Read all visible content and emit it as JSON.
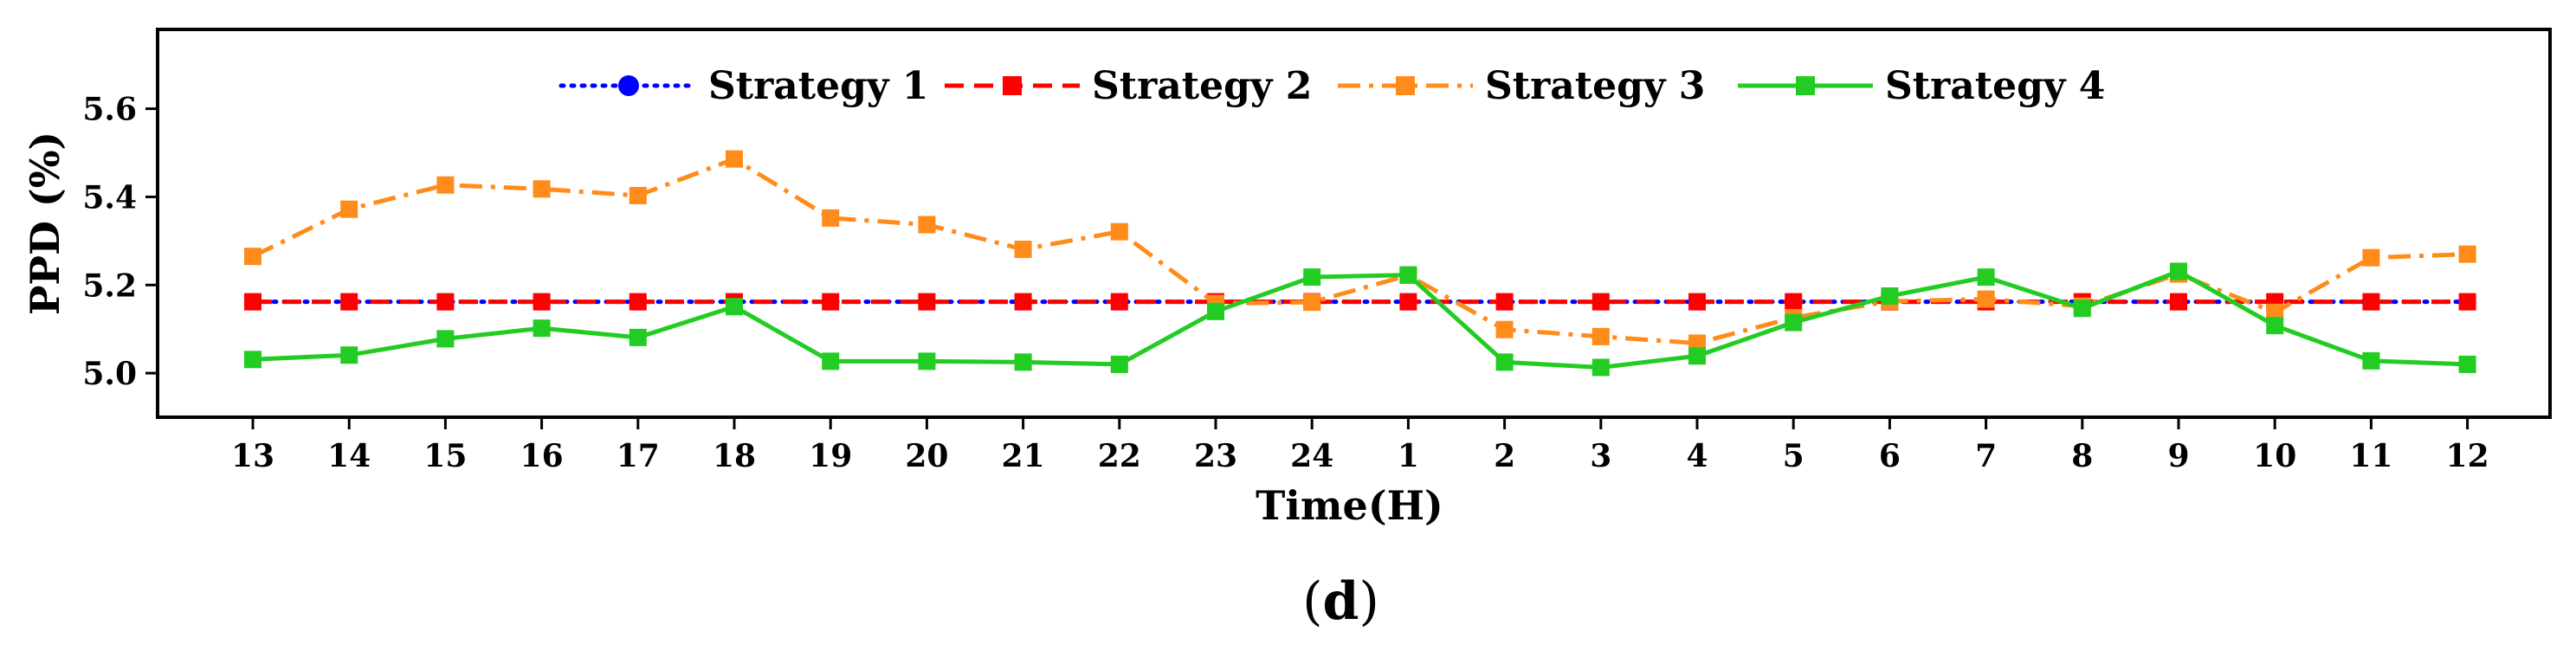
{
  "chart_data": {
    "type": "line",
    "title": "",
    "xlabel": "Time(H)",
    "ylabel": "PPD (%)",
    "ylim": [
      4.9,
      5.78
    ],
    "yticks": [
      "5.0",
      "5.2",
      "5.4",
      "5.6"
    ],
    "yticks_values": [
      5.0,
      5.2,
      5.4,
      5.6
    ],
    "grid": false,
    "legend_position": "top-center",
    "categories": [
      "13",
      "14",
      "15",
      "16",
      "17",
      "18",
      "19",
      "20",
      "21",
      "22",
      "23",
      "24",
      "1",
      "2",
      "3",
      "4",
      "5",
      "6",
      "7",
      "8",
      "9",
      "10",
      "11",
      "12"
    ],
    "series": [
      {
        "name": "Strategy 1",
        "color": "#0000ff",
        "marker": "circle",
        "line_style": "dotted",
        "values": [
          5.162,
          5.162,
          5.162,
          5.162,
          5.162,
          5.162,
          5.162,
          5.162,
          5.162,
          5.162,
          5.162,
          5.162,
          5.162,
          5.162,
          5.162,
          5.162,
          5.162,
          5.162,
          5.162,
          5.162,
          5.162,
          5.162,
          5.162,
          5.162
        ]
      },
      {
        "name": "Strategy 2",
        "color": "#ff0000",
        "marker": "square",
        "line_style": "dashed",
        "values": [
          5.162,
          5.162,
          5.162,
          5.162,
          5.162,
          5.162,
          5.162,
          5.162,
          5.162,
          5.162,
          5.162,
          5.162,
          5.162,
          5.162,
          5.162,
          5.162,
          5.162,
          5.162,
          5.162,
          5.162,
          5.162,
          5.162,
          5.162,
          5.162
        ]
      },
      {
        "name": "Strategy 3",
        "color": "#ff8c1a",
        "marker": "square",
        "line_style": "dashdot",
        "values": [
          5.265,
          5.372,
          5.427,
          5.418,
          5.403,
          5.486,
          5.352,
          5.337,
          5.281,
          5.321,
          5.158,
          5.161,
          5.222,
          5.099,
          5.083,
          5.068,
          5.126,
          5.163,
          5.168,
          5.152,
          5.225,
          5.138,
          5.262,
          5.27
        ]
      },
      {
        "name": "Strategy 4",
        "color": "#22cc22",
        "marker": "square",
        "line_style": "solid",
        "values": [
          5.031,
          5.041,
          5.078,
          5.102,
          5.081,
          5.151,
          5.027,
          5.027,
          5.025,
          5.02,
          5.14,
          5.218,
          5.223,
          5.025,
          5.013,
          5.039,
          5.115,
          5.175,
          5.218,
          5.147,
          5.231,
          5.108,
          5.028,
          5.02
        ]
      }
    ],
    "annotations": [
      "(d)"
    ]
  }
}
